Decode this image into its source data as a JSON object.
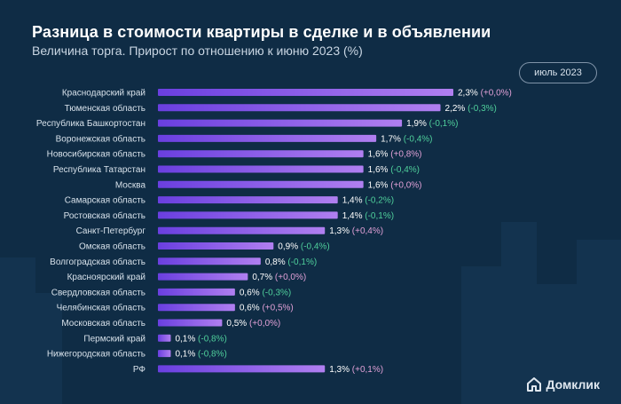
{
  "title": "Разница в стоимости квартиры в сделке и в объявлении",
  "subtitle": "Величина торга. Прирост по отношению к июню 2023 (%)",
  "period_label": "июль 2023",
  "brand": "Домклик",
  "colors": {
    "background": "#0f2c45",
    "bar_start": "#6a3fe0",
    "bar_end": "#b07ff0",
    "label": "#d7e1ea",
    "value": "#ffffff",
    "positive_change": "#e0a0d6",
    "negative_change": "#4fcf9b",
    "neutral_change": "#e0a0d6"
  },
  "chart_data": {
    "type": "bar",
    "orientation": "horizontal",
    "title": "Разница в стоимости квартиры в сделке и в объявлении",
    "subtitle": "Величина торга. Прирост по отношению к июню 2023 (%)",
    "xlim": [
      0,
      2.3
    ],
    "categories": [
      "Краснодарский край",
      "Тюменская область",
      "Республика Башкортостан",
      "Воронежская область",
      "Новосибирская область",
      "Республика Татарстан",
      "Москва",
      "Самарская область",
      "Ростовская область",
      "Санкт-Петербург",
      "Омская область",
      "Волгоградская область",
      "Красноярский край",
      "Свердловская область",
      "Челябинская область",
      "Московская область",
      "Пермский край",
      "Нижегородская область",
      "РФ"
    ],
    "values": [
      2.3,
      2.2,
      1.9,
      1.7,
      1.6,
      1.6,
      1.6,
      1.4,
      1.4,
      1.3,
      0.9,
      0.8,
      0.7,
      0.6,
      0.6,
      0.5,
      0.1,
      0.1,
      1.3
    ],
    "value_labels": [
      "2,3%",
      "2,2%",
      "1,9%",
      "1,7%",
      "1,6%",
      "1,6%",
      "1,6%",
      "1,4%",
      "1,4%",
      "1,3%",
      "0,9%",
      "0,8%",
      "0,7%",
      "0,6%",
      "0,6%",
      "0,5%",
      "0,1%",
      "0,1%",
      "1,3%"
    ],
    "changes": [
      0.0,
      -0.3,
      -0.1,
      -0.4,
      0.8,
      -0.4,
      0.0,
      -0.2,
      -0.1,
      0.4,
      -0.4,
      -0.1,
      0.0,
      -0.3,
      0.5,
      0.0,
      -0.8,
      -0.8,
      0.1
    ],
    "change_labels": [
      "(+0,0%)",
      "(-0,3%)",
      "(-0,1%)",
      "(-0,4%)",
      "(+0,8%)",
      "(-0,4%)",
      "(+0,0%)",
      "(-0,2%)",
      "(-0,1%)",
      "(+0,4%)",
      "(-0,4%)",
      "(-0,1%)",
      "(+0,0%)",
      "(-0,3%)",
      "(+0,5%)",
      "(+0,0%)",
      "(-0,8%)",
      "(-0,8%)",
      "(+0,1%)"
    ],
    "grid": false,
    "legend": "none"
  }
}
